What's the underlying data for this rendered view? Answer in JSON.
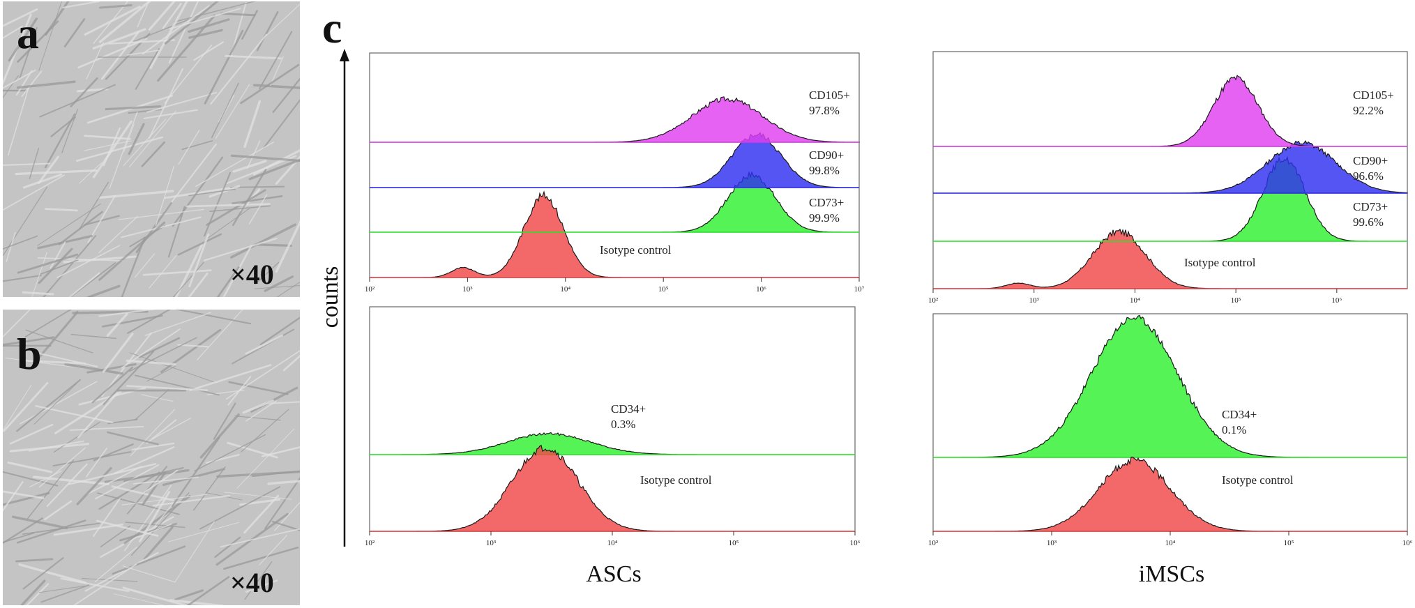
{
  "panels": {
    "a": {
      "letter": "a",
      "magnification": "×40"
    },
    "b": {
      "letter": "b",
      "magnification": "×40"
    },
    "c": {
      "letter": "c"
    }
  },
  "y_axis_title": "counts",
  "colors": {
    "CD105": "#e040f0",
    "CD90": "#3030f0",
    "CD73": "#30f030",
    "CD34": "#30f030",
    "isotype": "#f04848",
    "outline": "#1a1a1a"
  },
  "chart_data": [
    {
      "type": "area",
      "group": "ASCs",
      "xlabel": "ASCs",
      "x_scale": "log",
      "xlim": [
        100,
        10000000
      ],
      "x_ticks": [
        "10²",
        "10³",
        "10⁴",
        "10⁵",
        "10⁶",
        "10⁷"
      ],
      "series": [
        {
          "name": "CD105+",
          "value_label": "97.8%",
          "peak_x": 450000,
          "color": "CD105"
        },
        {
          "name": "CD90+",
          "value_label": "99.8%",
          "peak_x": 900000,
          "color": "CD90"
        },
        {
          "name": "CD73+",
          "value_label": "99.9%",
          "peak_x": 800000,
          "color": "CD73"
        },
        {
          "name": "Isotype control",
          "peak_x": 6000,
          "color": "isotype"
        }
      ]
    },
    {
      "type": "area",
      "group": "iMSCs",
      "xlabel": "iMSCs",
      "x_scale": "log",
      "xlim": [
        100,
        5000000
      ],
      "x_ticks": [
        "10²",
        "10³",
        "10⁴",
        "10⁵",
        "10⁶"
      ],
      "series": [
        {
          "name": "CD105+",
          "value_label": "92.2%",
          "peak_x": 100000,
          "color": "CD105"
        },
        {
          "name": "CD90+",
          "value_label": "96.6%",
          "peak_x": 450000,
          "color": "CD90"
        },
        {
          "name": "CD73+",
          "value_label": "99.6%",
          "peak_x": 300000,
          "color": "CD73"
        },
        {
          "name": "Isotype control",
          "peak_x": 7000,
          "color": "isotype"
        }
      ]
    },
    {
      "type": "area",
      "group": "ASCs",
      "xlabel": "ASCs",
      "x_scale": "log",
      "xlim": [
        100,
        1000000
      ],
      "x_ticks": [
        "10²",
        "10³",
        "10⁴",
        "10⁵",
        "10⁶"
      ],
      "series": [
        {
          "name": "CD34+",
          "value_label": "0.3%",
          "peak_x": 3000,
          "color": "CD34"
        },
        {
          "name": "Isotype control",
          "peak_x": 2800,
          "color": "isotype"
        }
      ]
    },
    {
      "type": "area",
      "group": "iMSCs",
      "xlabel": "iMSCs",
      "x_scale": "log",
      "xlim": [
        100,
        1000000
      ],
      "x_ticks": [
        "10²",
        "10³",
        "10⁴",
        "10⁵",
        "10⁶"
      ],
      "series": [
        {
          "name": "CD34+",
          "value_label": "0.1%",
          "peak_x": 5000,
          "color": "CD34"
        },
        {
          "name": "Isotype control",
          "peak_x": 5000,
          "color": "isotype"
        }
      ]
    }
  ]
}
